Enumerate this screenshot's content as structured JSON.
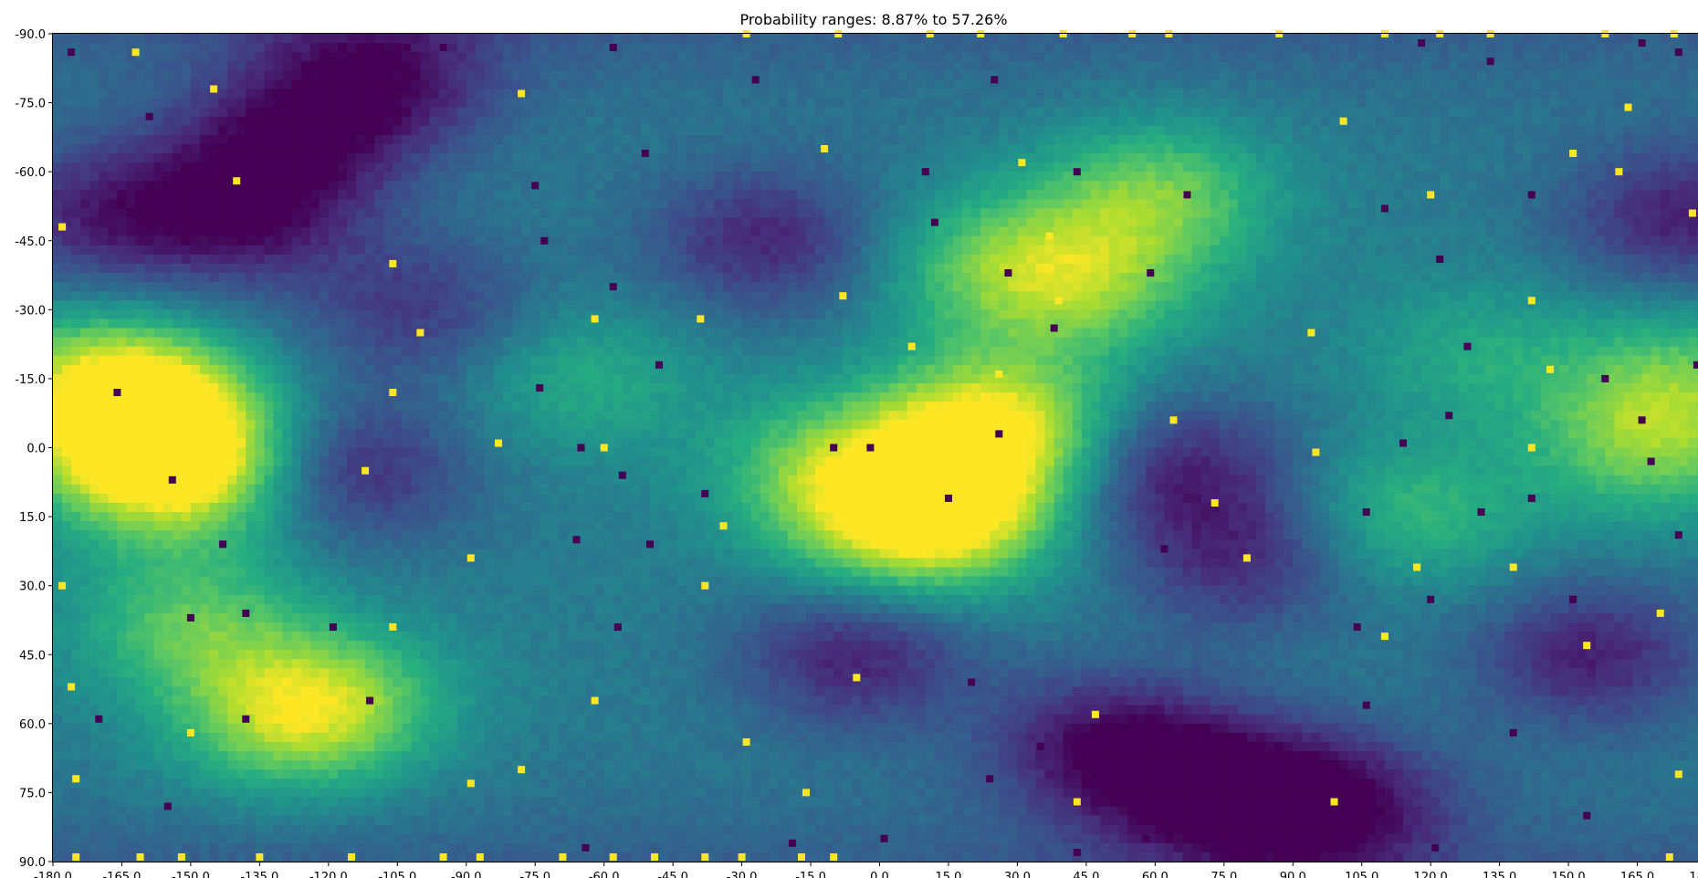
{
  "chart_data": {
    "type": "heatmap",
    "title": "Probability ranges: 8.87% to 57.26%",
    "colormap": "viridis",
    "color_range_percent": [
      8.87,
      57.26
    ],
    "xlim": [
      -180,
      180
    ],
    "ylim": [
      90,
      -90
    ],
    "x_tick_labels": [
      "-180.0",
      "-165.0",
      "-150.0",
      "-135.0",
      "-120.0",
      "-105.0",
      "-90.0",
      "-75.0",
      "-60.0",
      "-45.0",
      "-30.0",
      "-15.0",
      "0.0",
      "15.0",
      "30.0",
      "45.0",
      "60.0",
      "75.0",
      "90.0",
      "105.0",
      "120.0",
      "135.0",
      "150.0",
      "165.0",
      "180.0"
    ],
    "y_tick_labels": [
      "-90.0",
      "-75.0",
      "-60.0",
      "-45.0",
      "-30.0",
      "-15.0",
      "0.0",
      "15.0",
      "30.0",
      "45.0",
      "60.0",
      "75.0",
      "90.0"
    ],
    "hotspots": [
      {
        "lon": -160,
        "lat": -5,
        "value": 0.92
      },
      {
        "lon": -152,
        "lat": 5,
        "value": 0.95
      },
      {
        "lon": -168,
        "lat": -15,
        "value": 0.8
      },
      {
        "lon": 25,
        "lat": -5,
        "value": 0.97
      },
      {
        "lon": 15,
        "lat": 12,
        "value": 0.88
      },
      {
        "lon": 5,
        "lat": 20,
        "value": 0.7
      },
      {
        "lon": -10,
        "lat": 5,
        "value": 0.75
      },
      {
        "lon": 60,
        "lat": -55,
        "value": 0.78
      },
      {
        "lon": 45,
        "lat": -35,
        "value": 0.72
      },
      {
        "lon": 25,
        "lat": -40,
        "value": 0.7
      },
      {
        "lon": -120,
        "lat": 55,
        "value": 0.75
      },
      {
        "lon": -150,
        "lat": 38,
        "value": 0.72
      },
      {
        "lon": -130,
        "lat": 60,
        "value": 0.7
      },
      {
        "lon": 168,
        "lat": 0,
        "value": 0.75
      },
      {
        "lon": 175,
        "lat": -15,
        "value": 0.7
      },
      {
        "lon": 115,
        "lat": 15,
        "value": 0.68
      },
      {
        "lon": -65,
        "lat": -15,
        "value": 0.62
      },
      {
        "lon": 130,
        "lat": -20,
        "value": 0.6
      }
    ],
    "coldspots": [
      {
        "lon": -110,
        "lat": -80,
        "value": 0.08
      },
      {
        "lon": -130,
        "lat": -65,
        "value": 0.12
      },
      {
        "lon": -140,
        "lat": -50,
        "value": 0.1
      },
      {
        "lon": -115,
        "lat": 5,
        "value": 0.12
      },
      {
        "lon": 65,
        "lat": 5,
        "value": 0.1
      },
      {
        "lon": 80,
        "lat": 25,
        "value": 0.15
      },
      {
        "lon": 50,
        "lat": 65,
        "value": 0.05
      },
      {
        "lon": 75,
        "lat": 75,
        "value": 0.05
      },
      {
        "lon": 100,
        "lat": 78,
        "value": 0.08
      },
      {
        "lon": -5,
        "lat": 45,
        "value": 0.1
      },
      {
        "lon": -25,
        "lat": -45,
        "value": 0.12
      },
      {
        "lon": 155,
        "lat": 45,
        "value": 0.1
      },
      {
        "lon": 175,
        "lat": -50,
        "value": 0.1
      },
      {
        "lon": -172,
        "lat": -50,
        "value": 0.15
      },
      {
        "lon": -100,
        "lat": -30,
        "value": 0.18
      }
    ],
    "markers_yellow": [
      [
        -178,
        -48
      ],
      [
        -178,
        -10
      ],
      [
        -178,
        30
      ],
      [
        -176,
        52
      ],
      [
        -175,
        72
      ],
      [
        -175,
        89
      ],
      [
        -162,
        -86
      ],
      [
        -161,
        89
      ],
      [
        -152,
        89
      ],
      [
        -150,
        62
      ],
      [
        -145,
        -78
      ],
      [
        -140,
        -58
      ],
      [
        -135,
        89
      ],
      [
        -115,
        89
      ],
      [
        -112,
        5
      ],
      [
        -106,
        -40
      ],
      [
        -106,
        -12
      ],
      [
        -106,
        39
      ],
      [
        -100,
        -25
      ],
      [
        -95,
        89
      ],
      [
        -89,
        24
      ],
      [
        -89,
        73
      ],
      [
        -87,
        89
      ],
      [
        -83,
        -1
      ],
      [
        -78,
        -77
      ],
      [
        -78,
        70
      ],
      [
        -69,
        89
      ],
      [
        -62,
        -28
      ],
      [
        -62,
        55
      ],
      [
        -60,
        0
      ],
      [
        -58,
        89
      ],
      [
        -49,
        89
      ],
      [
        -39,
        -28
      ],
      [
        -38,
        30
      ],
      [
        -38,
        89
      ],
      [
        -34,
        17
      ],
      [
        -30,
        89
      ],
      [
        -29,
        -90
      ],
      [
        -29,
        64
      ],
      [
        -16,
        75
      ],
      [
        -17,
        89
      ],
      [
        -12,
        -65
      ],
      [
        -9,
        -90
      ],
      [
        -10,
        89
      ],
      [
        -8,
        -33
      ],
      [
        -5,
        50
      ],
      [
        7,
        -22
      ],
      [
        11,
        -90
      ],
      [
        22,
        -90
      ],
      [
        26,
        -16
      ],
      [
        31,
        -62
      ],
      [
        37,
        -46
      ],
      [
        39,
        -32
      ],
      [
        40,
        -90
      ],
      [
        43,
        77
      ],
      [
        47,
        58
      ],
      [
        55,
        -90
      ],
      [
        63,
        -90
      ],
      [
        64,
        -6
      ],
      [
        73,
        12
      ],
      [
        80,
        24
      ],
      [
        87,
        -90
      ],
      [
        94,
        -25
      ],
      [
        95,
        1
      ],
      [
        99,
        77
      ],
      [
        101,
        -71
      ],
      [
        110,
        -90
      ],
      [
        110,
        41
      ],
      [
        117,
        26
      ],
      [
        120,
        -55
      ],
      [
        122,
        -90
      ],
      [
        133,
        -90
      ],
      [
        138,
        26
      ],
      [
        142,
        -32
      ],
      [
        142,
        0
      ],
      [
        146,
        -17
      ],
      [
        151,
        -64
      ],
      [
        154,
        43
      ],
      [
        158,
        -90
      ],
      [
        161,
        -60
      ],
      [
        163,
        -74
      ],
      [
        170,
        36
      ],
      [
        172,
        89
      ],
      [
        174,
        71
      ],
      [
        173,
        -90
      ],
      [
        177,
        -51
      ],
      [
        180,
        -10
      ]
    ],
    "markers_purple": [
      [
        -176,
        -86
      ],
      [
        -170,
        59
      ],
      [
        -166,
        -12
      ],
      [
        -159,
        -72
      ],
      [
        -155,
        78
      ],
      [
        -154,
        7
      ],
      [
        -150,
        37
      ],
      [
        -145,
        -65
      ],
      [
        -143,
        21
      ],
      [
        -138,
        36
      ],
      [
        -138,
        59
      ],
      [
        -161,
        -51
      ],
      [
        -121,
        -86
      ],
      [
        -119,
        39
      ],
      [
        -111,
        55
      ],
      [
        -103,
        -87
      ],
      [
        -95,
        -87
      ],
      [
        -74,
        -13
      ],
      [
        -73,
        -45
      ],
      [
        -75,
        -57
      ],
      [
        -66,
        20
      ],
      [
        -65,
        0
      ],
      [
        -64,
        87
      ],
      [
        -58,
        -87
      ],
      [
        -58,
        -35
      ],
      [
        -57,
        39
      ],
      [
        -56,
        6
      ],
      [
        -50,
        21
      ],
      [
        -48,
        -18
      ],
      [
        -51,
        -64
      ],
      [
        -38,
        10
      ],
      [
        -27,
        -80
      ],
      [
        -19,
        86
      ],
      [
        -10,
        0
      ],
      [
        -2,
        0
      ],
      [
        1,
        85
      ],
      [
        10,
        -60
      ],
      [
        12,
        -49
      ],
      [
        15,
        11
      ],
      [
        20,
        51
      ],
      [
        24,
        72
      ],
      [
        25,
        -80
      ],
      [
        26,
        -3
      ],
      [
        28,
        -38
      ],
      [
        35,
        65
      ],
      [
        38,
        -26
      ],
      [
        43,
        -60
      ],
      [
        43,
        88
      ],
      [
        59,
        -38
      ],
      [
        58,
        85
      ],
      [
        62,
        22
      ],
      [
        67,
        -55
      ],
      [
        76,
        87
      ],
      [
        86,
        87
      ],
      [
        104,
        39
      ],
      [
        106,
        56
      ],
      [
        106,
        14
      ],
      [
        110,
        -52
      ],
      [
        114,
        -1
      ],
      [
        118,
        -88
      ],
      [
        120,
        33
      ],
      [
        122,
        -41
      ],
      [
        124,
        -7
      ],
      [
        121,
        87
      ],
      [
        128,
        -22
      ],
      [
        131,
        14
      ],
      [
        133,
        -84
      ],
      [
        138,
        62
      ],
      [
        142,
        -55
      ],
      [
        142,
        11
      ],
      [
        151,
        33
      ],
      [
        154,
        80
      ],
      [
        158,
        -15
      ],
      [
        166,
        -88
      ],
      [
        166,
        -6
      ],
      [
        168,
        3
      ],
      [
        174,
        -86
      ],
      [
        174,
        19
      ],
      [
        178,
        -18
      ],
      [
        180,
        0
      ],
      [
        180,
        47
      ],
      [
        180,
        64
      ],
      [
        180,
        82
      ]
    ]
  }
}
